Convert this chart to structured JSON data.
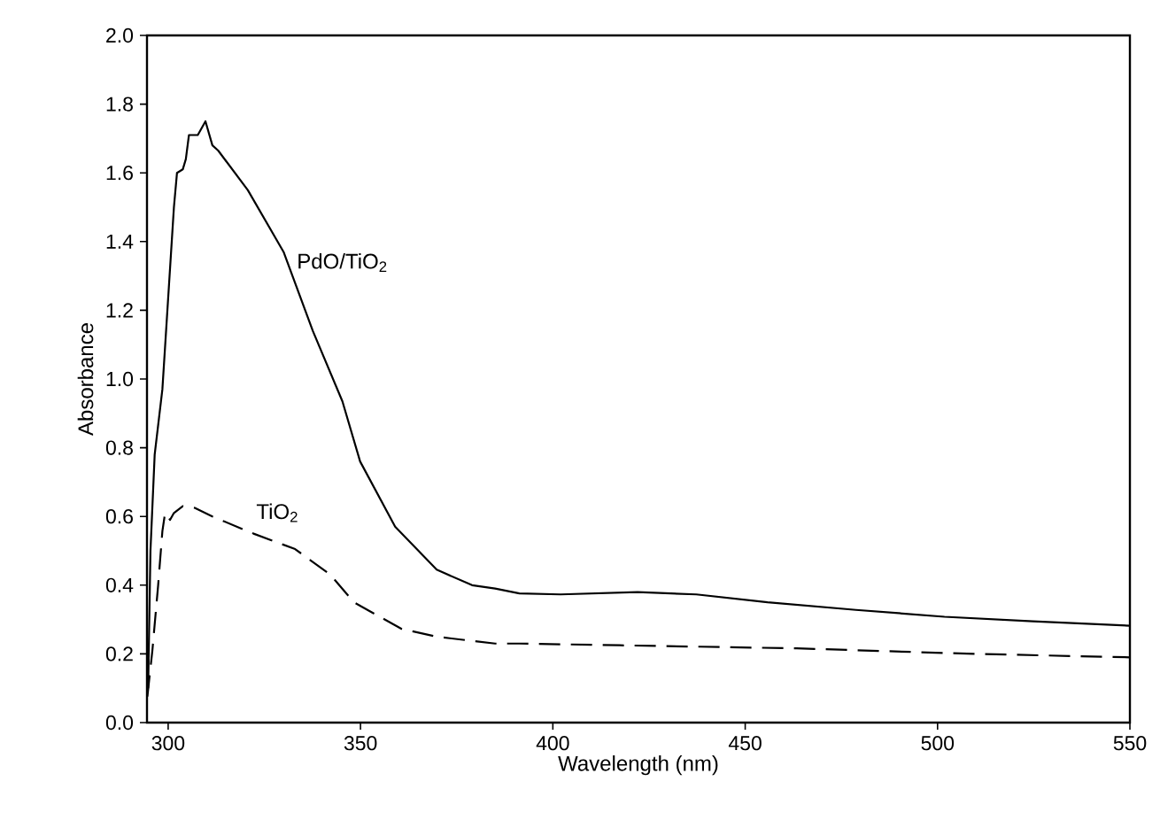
{
  "chart_data": {
    "type": "line",
    "xlabel": "Wavelength (nm)",
    "ylabel": "Absorbance",
    "xlim": [
      294.5,
      550
    ],
    "xticks": [
      300,
      350,
      400,
      450,
      500,
      550
    ],
    "ylim": [
      0,
      2.0
    ],
    "yticks": [
      {
        "value": 0,
        "label": "0.0"
      },
      0.2,
      0.4,
      0.6,
      0.8,
      {
        "value": 1.0,
        "label": "1.0"
      },
      1.2,
      1.4,
      1.6,
      1.8,
      {
        "value": 2.0,
        "label": "2.0"
      }
    ],
    "series": [
      {
        "name": "PdO/TiO$_{2}$",
        "color": "#000000",
        "line_style": "solid",
        "x": [
          294.8,
          295.4,
          296.5,
          298.5,
          301.5,
          302.3,
          303.8,
          304.6,
          305.4,
          307.7,
          309.7,
          311.5,
          313,
          320.7,
          330,
          337.6,
          345.3,
          349.9,
          359,
          369.8,
          379,
          385,
          391.3,
          402,
          422,
          437.3,
          455.8,
          478.8,
          501.8,
          524.8,
          550
        ],
        "values": [
          0.1,
          0.5,
          0.78,
          0.97,
          1.5,
          1.6,
          1.61,
          1.64,
          1.71,
          1.71,
          1.75,
          1.68,
          1.665,
          1.55,
          1.37,
          1.14,
          0.935,
          0.76,
          0.57,
          0.445,
          0.4,
          0.39,
          0.376,
          0.373,
          0.38,
          0.373,
          0.35,
          0.328,
          0.308,
          0.295,
          0.282
        ]
      },
      {
        "name": "TiO$_{2}$",
        "color": "#000000",
        "line_style": "dashed",
        "x": [
          294.6,
          295.9,
          297.4,
          298.5,
          299.2,
          300.5,
          301.5,
          303.8,
          306.9,
          311.5,
          322.2,
          333,
          342.2,
          348.3,
          360.6,
          369.8,
          385,
          391.3,
          417.4,
          463.4,
          509.5,
          550
        ],
        "values": [
          0.076,
          0.21,
          0.4,
          0.557,
          0.61,
          0.59,
          0.61,
          0.63,
          0.625,
          0.6,
          0.55,
          0.505,
          0.43,
          0.35,
          0.273,
          0.25,
          0.23,
          0.23,
          0.225,
          0.216,
          0.2,
          0.19
        ]
      }
    ]
  }
}
